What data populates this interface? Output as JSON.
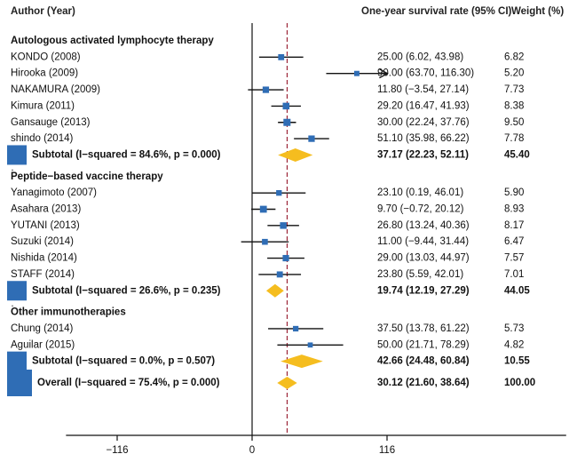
{
  "chart_data": {
    "type": "forest",
    "headers": {
      "author": "Author (Year)",
      "estimate": "One-year survival rate (95% CI)",
      "weight": "Weight (%)"
    },
    "x_axis": {
      "range": [
        -160,
        270
      ],
      "ticks": [
        -116,
        0,
        116
      ],
      "tick_labels": [
        "−116",
        "0",
        "116"
      ],
      "overall_line": 30.12
    },
    "groups": [
      {
        "title": "Autologous activated lymphocyte therapy",
        "studies": [
          {
            "label": "KONDO (2008)",
            "est": 25.0,
            "lo": 6.02,
            "hi": 43.98,
            "ci_text": "25.00 (6.02, 43.98)",
            "weight": "6.82",
            "w": 6.82,
            "arrow": false
          },
          {
            "label": "Hirooka (2009)",
            "est": 90.0,
            "lo": 63.7,
            "hi": 116.3,
            "ci_text": "90.00 (63.70, 116.30)",
            "weight": "5.20",
            "w": 5.2,
            "arrow": true
          },
          {
            "label": "NAKAMURA (2009)",
            "est": 11.8,
            "lo": -3.54,
            "hi": 27.14,
            "ci_text": "11.80 (−3.54, 27.14)",
            "weight": "7.73",
            "w": 7.73,
            "arrow": false
          },
          {
            "label": "Kimura (2011)",
            "est": 29.2,
            "lo": 16.47,
            "hi": 41.93,
            "ci_text": "29.20 (16.47, 41.93)",
            "weight": "8.38",
            "w": 8.38,
            "arrow": false
          },
          {
            "label": "Gansauge (2013)",
            "est": 30.0,
            "lo": 22.24,
            "hi": 37.76,
            "ci_text": "30.00 (22.24, 37.76)",
            "weight": "9.50",
            "w": 9.5,
            "arrow": false
          },
          {
            "label": "shindo (2014)",
            "est": 51.1,
            "lo": 35.98,
            "hi": 66.22,
            "ci_text": "51.10 (35.98, 66.22)",
            "weight": "7.78",
            "w": 7.78,
            "arrow": false
          }
        ],
        "subtotal": {
          "label": "Subtotal  (I−squared = 84.6%, p = 0.000)",
          "est": 37.17,
          "lo": 22.23,
          "hi": 52.11,
          "ci_text": "37.17 (22.23, 52.11)",
          "weight": "45.40",
          "w": 45.4
        }
      },
      {
        "title": "Peptide−based vaccine therapy",
        "studies": [
          {
            "label": "Yanagimoto (2007)",
            "est": 23.1,
            "lo": 0.19,
            "hi": 46.01,
            "ci_text": "23.10 (0.19, 46.01)",
            "weight": "5.90",
            "w": 5.9,
            "arrow": false
          },
          {
            "label": "Asahara (2013)",
            "est": 9.7,
            "lo": -0.72,
            "hi": 20.12,
            "ci_text": "9.70 (−0.72, 20.12)",
            "weight": "8.93",
            "w": 8.93,
            "arrow": false
          },
          {
            "label": "YUTANI (2013)",
            "est": 26.8,
            "lo": 13.24,
            "hi": 40.36,
            "ci_text": "26.80 (13.24, 40.36)",
            "weight": "8.17",
            "w": 8.17,
            "arrow": false
          },
          {
            "label": "Suzuki (2014)",
            "est": 11.0,
            "lo": -9.44,
            "hi": 31.44,
            "ci_text": "11.00 (−9.44, 31.44)",
            "weight": "6.47",
            "w": 6.47,
            "arrow": false
          },
          {
            "label": "Nishida (2014)",
            "est": 29.0,
            "lo": 13.03,
            "hi": 44.97,
            "ci_text": "29.00 (13.03, 44.97)",
            "weight": "7.57",
            "w": 7.57,
            "arrow": false
          },
          {
            "label": "STAFF (2014)",
            "est": 23.8,
            "lo": 5.59,
            "hi": 42.01,
            "ci_text": "23.80 (5.59, 42.01)",
            "weight": "7.01",
            "w": 7.01,
            "arrow": false
          }
        ],
        "subtotal": {
          "label": "Subtotal  (I−squared = 26.6%, p = 0.235)",
          "est": 19.74,
          "lo": 12.19,
          "hi": 27.29,
          "ci_text": "19.74 (12.19, 27.29)",
          "weight": "44.05",
          "w": 44.05
        }
      },
      {
        "title": "Other immunotherapies",
        "studies": [
          {
            "label": "Chung (2014)",
            "est": 37.5,
            "lo": 13.78,
            "hi": 61.22,
            "ci_text": "37.50 (13.78, 61.22)",
            "weight": "5.73",
            "w": 5.73,
            "arrow": false
          },
          {
            "label": "Aguilar (2015)",
            "est": 50.0,
            "lo": 21.71,
            "hi": 78.29,
            "ci_text": "50.00 (21.71, 78.29)",
            "weight": "4.82",
            "w": 4.82,
            "arrow": false
          }
        ],
        "subtotal": {
          "label": "Subtotal  (I−squared = 0.0%, p = 0.507)",
          "est": 42.66,
          "lo": 24.48,
          "hi": 60.84,
          "ci_text": "42.66 (24.48, 60.84)",
          "weight": "10.55",
          "w": 10.55
        }
      }
    ],
    "overall": {
      "label": "Overall  (I−squared = 75.4%, p = 0.000)",
      "est": 30.12,
      "lo": 21.6,
      "hi": 38.64,
      "ci_text": "30.12 (21.60, 38.64)",
      "weight": "100.00",
      "w": 100.0
    },
    "colors": {
      "study_box": "#2f6db5",
      "diamond": "#f5bd1f",
      "ci_line": "#111111",
      "ref_line": "#9b2335",
      "axis": "#111111"
    }
  }
}
